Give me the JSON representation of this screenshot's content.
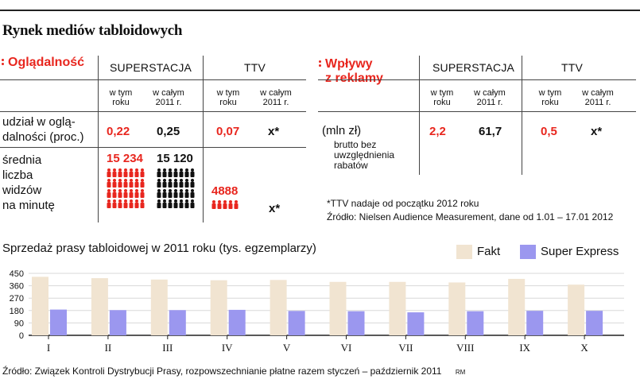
{
  "title": "Rynek mediów tabloidowych",
  "left_table": {
    "header": "Oglądalność",
    "columns": [
      "SUPERSTACJA",
      "TTV"
    ],
    "subheaders": [
      "w tym\nroku",
      "w całym\n2011 r.",
      "w tym\nroku",
      "w całym\n2011 r."
    ],
    "rows": [
      {
        "label": "udział w oglą-\ndalności (proc.)",
        "values": [
          "0,22",
          "0,25",
          "0,07",
          "x*"
        ]
      },
      {
        "label": "średnia\nliczba\nwidzów\nna minutę",
        "values": [
          "15 234",
          "15 120",
          "4888",
          "x*"
        ]
      }
    ]
  },
  "right_table": {
    "header": "Wpływy\nz reklamy",
    "columns": [
      "SUPERSTACJA",
      "TTV"
    ],
    "subheaders": [
      "w tym\nroku",
      "w całym\n2011 r.",
      "w tym\nroku",
      "w całym\n2011 r."
    ],
    "row_label": "(mln zł)",
    "row_note": "brutto bez\nuwzględnienia\nrabatów",
    "values": [
      "2,2",
      "61,7",
      "0,5",
      "x*"
    ]
  },
  "footnote": "*TTV nadaje od początku 2012 roku",
  "source_top": "Źródło: Nielsen Audience Measurement, dane od 1.01 – 17.01 2012",
  "colors": {
    "red": "#e8261e",
    "fakt": "#f1e4d1",
    "super_express": "#9b97ef"
  },
  "chart_data": {
    "type": "bar",
    "title": "Sprzedaż prasy tabloidowej w 2011 roku (tys. egzemplarzy)",
    "categories": [
      "I",
      "II",
      "III",
      "IV",
      "V",
      "VI",
      "VII",
      "VIII",
      "IX",
      "X"
    ],
    "series": [
      {
        "name": "Fakt",
        "values": [
          425,
          415,
          405,
          400,
          402,
          388,
          388,
          384,
          410,
          368
        ]
      },
      {
        "name": "Super Express",
        "values": [
          187,
          183,
          183,
          185,
          177,
          175,
          167,
          175,
          178,
          178
        ]
      }
    ],
    "yticks": [
      "450",
      "360",
      "270",
      "180",
      "90",
      "0"
    ],
    "ylim": [
      0,
      450
    ],
    "legend": "top-right"
  },
  "source_bottom": "Źródło: Związek Kontroli Dystrybucji Prasy, rozpowszechnianie płatne razem styczeń – październik 2011",
  "signature": "RM"
}
